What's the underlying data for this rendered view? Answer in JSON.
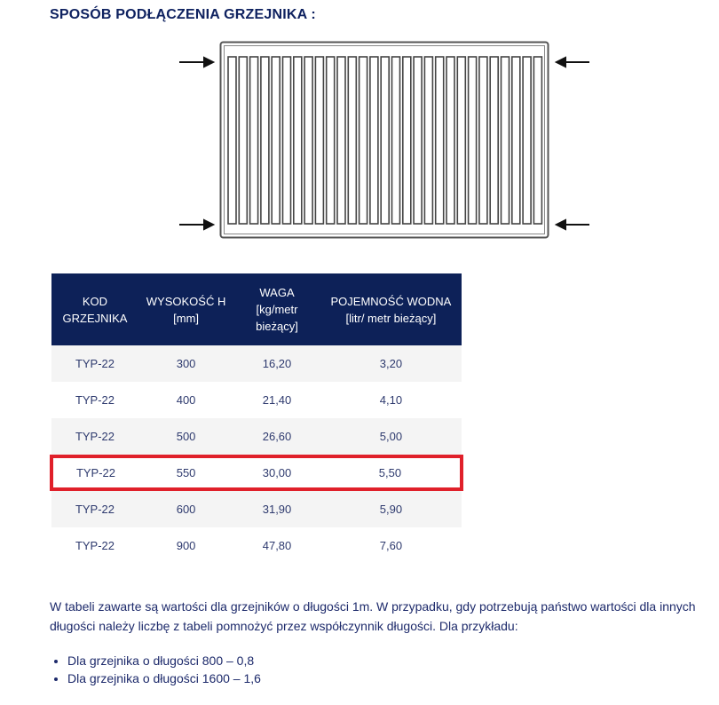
{
  "title": "SPOSÓB PODŁĄCZENIA GRZEJNIKA :",
  "table": {
    "headers": [
      "KOD GRZEJNIKA",
      "WYSOKOŚĆ H [mm]",
      "WAGA [kg/metr bieżący]",
      "POJEMNOŚĆ WODNA [litr/ metr bieżący]"
    ],
    "rows": [
      [
        "TYP-22",
        "300",
        "16,20",
        "3,20"
      ],
      [
        "TYP-22",
        "400",
        "21,40",
        "4,10"
      ],
      [
        "TYP-22",
        "500",
        "26,60",
        "5,00"
      ],
      [
        "TYP-22",
        "550",
        "30,00",
        "5,50"
      ],
      [
        "TYP-22",
        "600",
        "31,90",
        "5,90"
      ],
      [
        "TYP-22",
        "900",
        "47,80",
        "7,60"
      ]
    ],
    "highlight_color": "#e0202a",
    "header_color": "#0d2158"
  },
  "note": "W tabeli zawarte są wartości dla grzejników o długości 1m. W przypadku, gdy potrzebują państwo wartości dla innych długości należy liczbę z tabeli pomnożyć przez współczynnik długości. Dla przykładu:",
  "examples": [
    "Dla grzejnika o długości 800 – 0,8",
    "Dla grzejnika o długości 1600 – 1,6"
  ]
}
